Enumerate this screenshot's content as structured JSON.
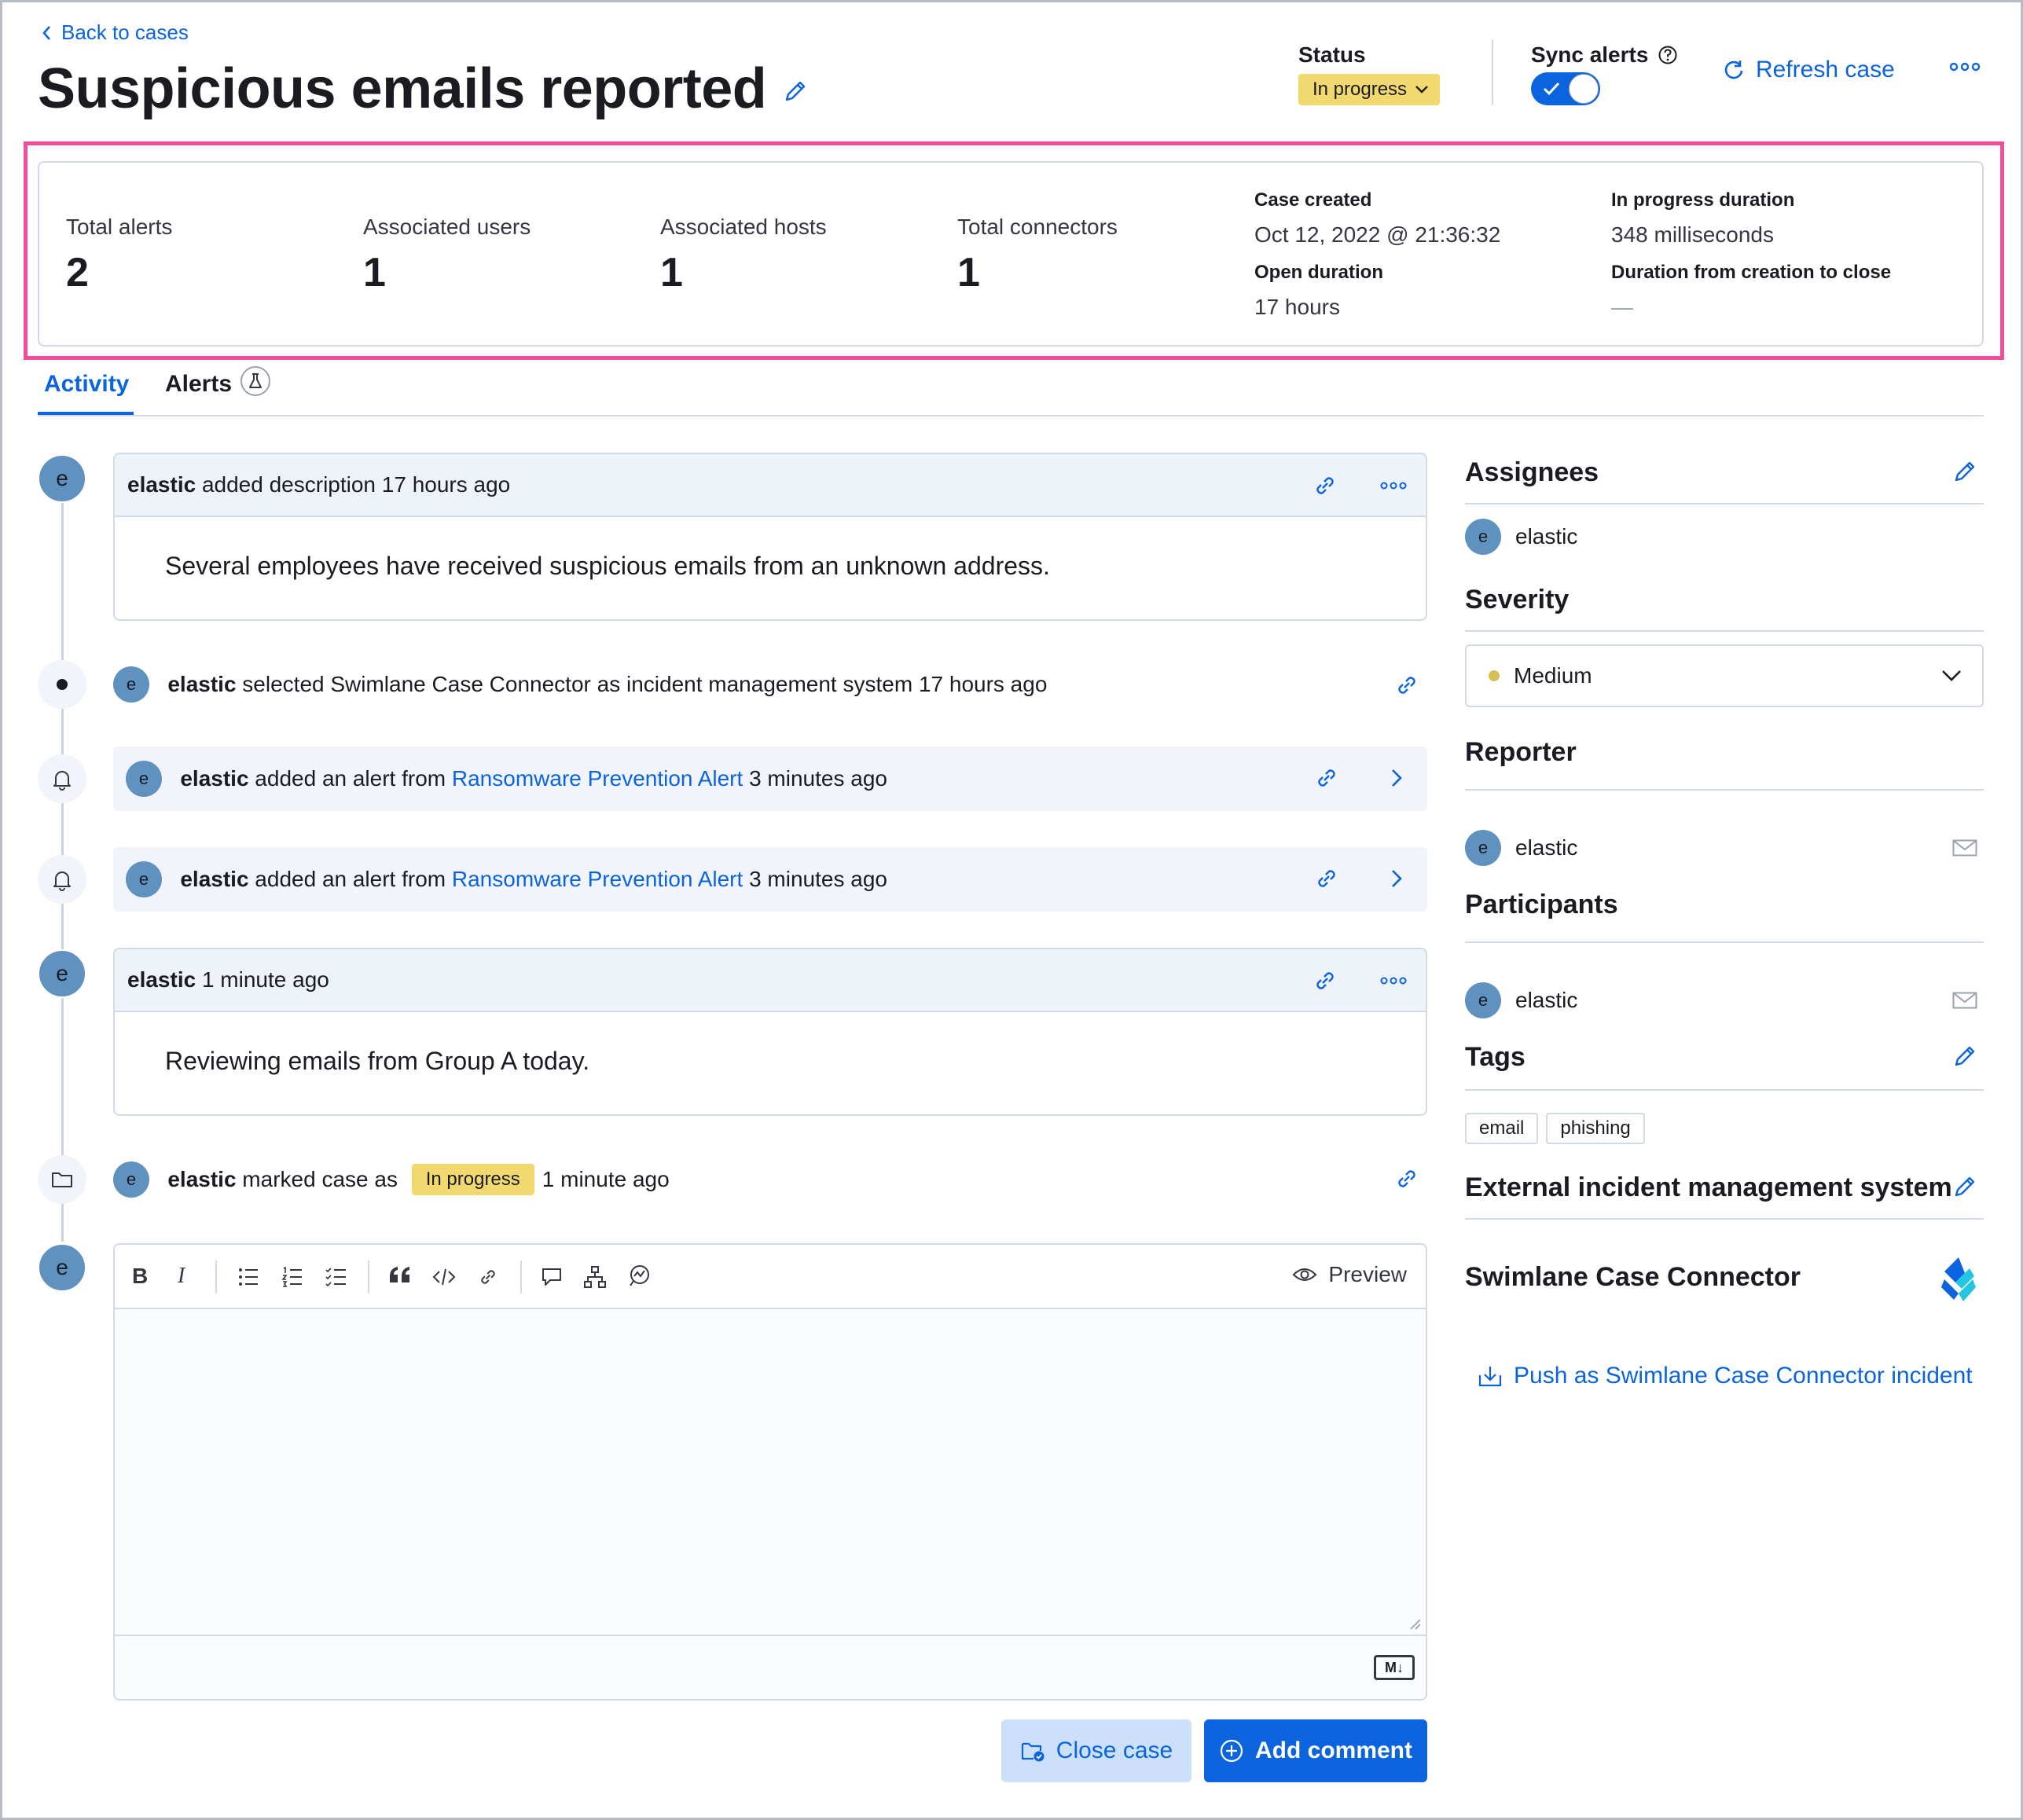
{
  "nav": {
    "back_label": "Back to cases"
  },
  "case": {
    "title": "Suspicious emails reported"
  },
  "header": {
    "status_label": "Status",
    "status_value": "In progress",
    "sync_alerts_label": "Sync alerts",
    "sync_alerts_enabled": true,
    "refresh_label": "Refresh case"
  },
  "metrics": {
    "total_alerts": {
      "label": "Total alerts",
      "value": "2"
    },
    "associated_users": {
      "label": "Associated users",
      "value": "1"
    },
    "associated_hosts": {
      "label": "Associated hosts",
      "value": "1"
    },
    "total_connectors": {
      "label": "Total connectors",
      "value": "1"
    },
    "case_created": {
      "label": "Case created",
      "value": "Oct 12, 2022 @ 21:36:32"
    },
    "open_duration": {
      "label": "Open duration",
      "value": "17 hours"
    },
    "in_progress_duration": {
      "label": "In progress duration",
      "value": "348 milliseconds"
    },
    "duration_to_close": {
      "label": "Duration from creation to close",
      "value": "—"
    }
  },
  "tabs": [
    {
      "label": "Activity",
      "active": true
    },
    {
      "label": "Alerts",
      "active": false
    }
  ],
  "activity": {
    "description": {
      "user": "elastic",
      "action": "added description 17 hours ago",
      "body": "Several employees have received suspicious emails from an unknown address."
    },
    "connector": {
      "user": "elastic",
      "action": "selected Swimlane Case Connector  as incident management system 17 hours ago"
    },
    "alerts": [
      {
        "user": "elastic",
        "prefix": "added an alert from",
        "rule": "Ransomware Prevention Alert",
        "time": "3 minutes ago"
      },
      {
        "user": "elastic",
        "prefix": "added an alert from",
        "rule": "Ransomware Prevention Alert",
        "time": "3 minutes ago"
      }
    ],
    "comment": {
      "user": "elastic",
      "time": "1 minute ago",
      "body": "Reviewing emails from Group A today."
    },
    "status_change": {
      "user": "elastic",
      "prefix": "marked case as",
      "status": "In progress",
      "time": "1 minute ago"
    },
    "avatar_letter": "e"
  },
  "editor": {
    "preview_label": "Preview",
    "markdown_badge": "M↓",
    "bold": "B",
    "italic": "I"
  },
  "buttons": {
    "close_case": "Close case",
    "add_comment": "Add comment"
  },
  "sidebar": {
    "assignees": {
      "title": "Assignees",
      "users": [
        "elastic"
      ]
    },
    "severity": {
      "title": "Severity",
      "value": "Medium",
      "color": "#d6bf57"
    },
    "reporter": {
      "title": "Reporter",
      "user": "elastic"
    },
    "participants": {
      "title": "Participants",
      "users": [
        "elastic"
      ]
    },
    "tags": {
      "title": "Tags",
      "items": [
        "email",
        "phishing"
      ]
    },
    "external": {
      "title": "External incident management system",
      "connector_name": "Swimlane Case Connector",
      "push_label": "Push as Swimlane Case Connector incident"
    }
  },
  "colors": {
    "accent": "#0b64dd",
    "highlight_border": "#f04e98",
    "status_in_progress": "#f1d86f",
    "avatar": "#6092c0"
  }
}
